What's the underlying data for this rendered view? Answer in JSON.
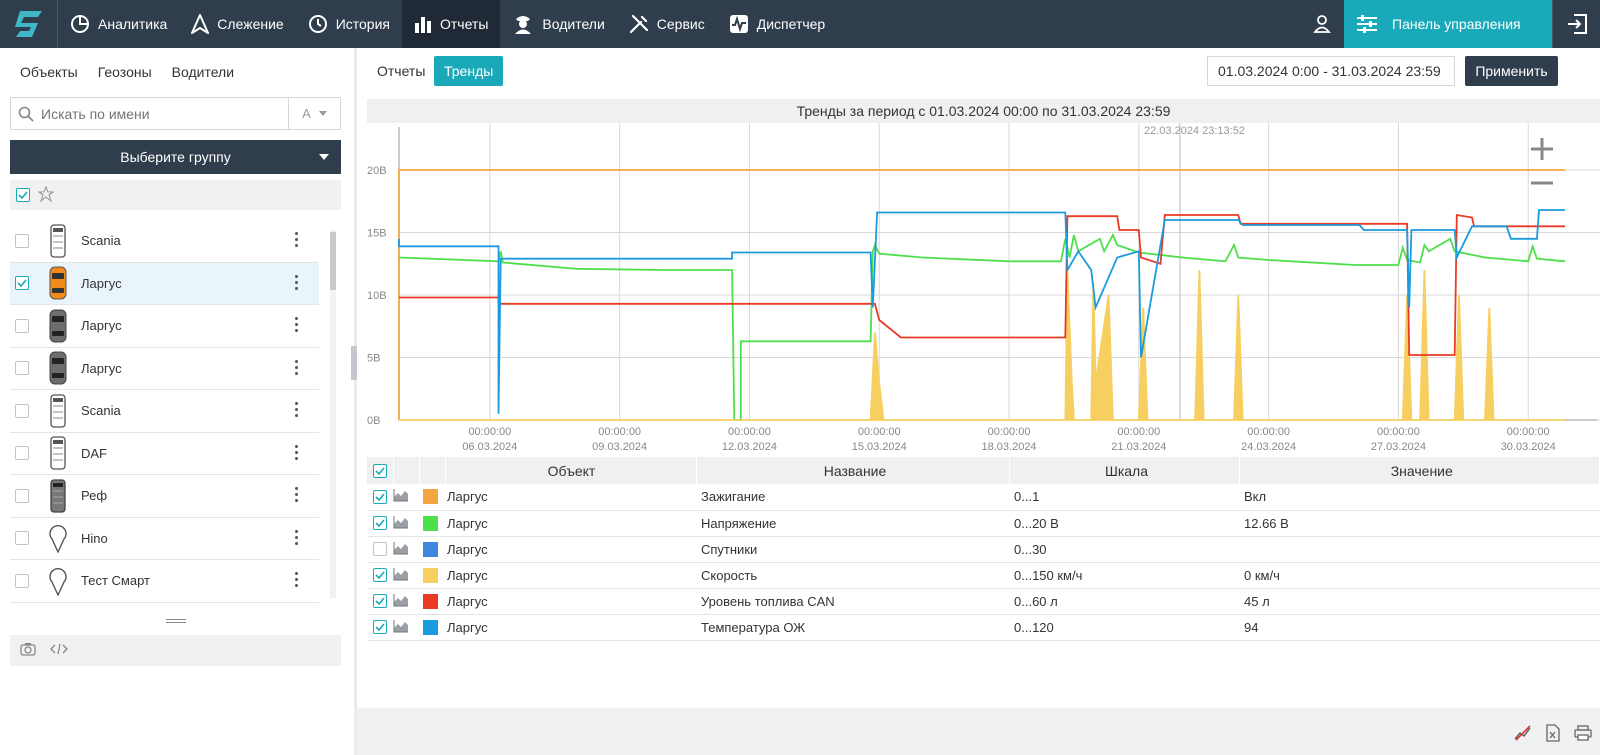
{
  "nav": {
    "items": [
      {
        "label": "Аналитика",
        "icon": "analytics-icon"
      },
      {
        "label": "Слежение",
        "icon": "tracking-icon"
      },
      {
        "label": "История",
        "icon": "history-icon"
      },
      {
        "label": "Отчеты",
        "icon": "reports-icon",
        "active": true
      },
      {
        "label": "Водители",
        "icon": "drivers-icon"
      },
      {
        "label": "Сервис",
        "icon": "service-icon"
      },
      {
        "label": "Диспетчер",
        "icon": "dispatcher-icon"
      }
    ],
    "control_panel_label": "Панель управления",
    "accent": "#1aa9b8"
  },
  "left": {
    "tabs": [
      "Объекты",
      "Геозоны",
      "Водители"
    ],
    "search_placeholder": "Искать по имени",
    "sort_label": "А",
    "group_select": "Выберите группу",
    "vehicles": [
      {
        "name": "Scania",
        "icon": "truck-icon",
        "checked": false
      },
      {
        "name": "Ларгус",
        "icon": "car-icon",
        "checked": true
      },
      {
        "name": "Ларгус",
        "icon": "car-icon",
        "checked": false
      },
      {
        "name": "Ларгус",
        "icon": "car-icon",
        "checked": false
      },
      {
        "name": "Scania",
        "icon": "truck-icon",
        "checked": false
      },
      {
        "name": "DAF",
        "icon": "truck-icon",
        "checked": false
      },
      {
        "name": "Реф",
        "icon": "truck-icon",
        "checked": false
      },
      {
        "name": "Hino",
        "icon": "map-pin-icon",
        "checked": false
      },
      {
        "name": "Тест Смарт",
        "icon": "map-pin-icon",
        "checked": false
      }
    ]
  },
  "right": {
    "tab_reports": "Отчеты",
    "tab_trends": "Тренды",
    "date_range": "01.03.2024 0:00 - 31.03.2024 23:59",
    "apply_label": "Применить",
    "chart_title": "Тренды за период с 01.03.2024 00:00 по 31.03.2024 23:59",
    "table": {
      "headers": [
        "Объект",
        "Название",
        "Шкала",
        "Значение"
      ],
      "rows": [
        {
          "object": "Ларгус",
          "name": "Зажигание",
          "scale": "0...1",
          "value": "Вкл",
          "color": "#f5a540",
          "checked": true
        },
        {
          "object": "Ларгус",
          "name": "Напряжение",
          "scale": "0...20 В",
          "value": "12.66 В",
          "color": "#4ee04a",
          "checked": true
        },
        {
          "object": "Ларгус",
          "name": "Спутники",
          "scale": "0...30",
          "value": "",
          "color": "#3f87dc",
          "checked": false
        },
        {
          "object": "Ларгус",
          "name": "Скорость",
          "scale": "0...150 км/ч",
          "value": "0 км/ч",
          "color": "#f7cf60",
          "checked": true
        },
        {
          "object": "Ларгус",
          "name": "Уровень топлива CAN",
          "scale": "0...60 л",
          "value": "45 л",
          "color": "#ea3a24",
          "checked": true
        },
        {
          "object": "Ларгус",
          "name": "Температура ОЖ",
          "scale": "0...120",
          "value": "94",
          "color": "#1b9bdf",
          "checked": true
        }
      ]
    }
  },
  "chart_data": {
    "type": "line",
    "title": "Тренды за период с 01.03.2024 00:00 по 31.03.2024 23:59",
    "cursor_label": "22.03.2024 23:13:52",
    "y_axis": {
      "ticks": [
        "0В",
        "5В",
        "10В",
        "15В",
        "20В"
      ],
      "range": [
        0,
        22
      ]
    },
    "x_axis": {
      "range_days": [
        3.9,
        30.85
      ],
      "ticks": [
        {
          "day": 6,
          "time": "00:00:00",
          "date": "06.03.2024"
        },
        {
          "day": 9,
          "time": "00:00:00",
          "date": "09.03.2024"
        },
        {
          "day": 12,
          "time": "00:00:00",
          "date": "12.03.2024"
        },
        {
          "day": 15,
          "time": "00:00:00",
          "date": "15.03.2024"
        },
        {
          "day": 18,
          "time": "00:00:00",
          "date": "18.03.2024"
        },
        {
          "day": 21,
          "time": "00:00:00",
          "date": "21.03.2024"
        },
        {
          "day": 24,
          "time": "00:00:00",
          "date": "24.03.2024"
        },
        {
          "day": 27,
          "time": "00:00:00",
          "date": "27.03.2024"
        },
        {
          "day": 30,
          "time": "00:00:00",
          "date": "30.03.2024"
        }
      ]
    },
    "series": [
      {
        "name": "Зажигание",
        "color": "#f5a540",
        "points": [
          [
            3.9,
            0
          ],
          [
            3.9,
            20
          ],
          [
            30.85,
            20
          ]
        ]
      },
      {
        "name": "Напряжение",
        "color": "#4ee04a",
        "points": [
          [
            3.9,
            13
          ],
          [
            6.2,
            12.7
          ],
          [
            6.25,
            13.5
          ],
          [
            6.3,
            12.6
          ],
          [
            8,
            12.1
          ],
          [
            10,
            12.0
          ],
          [
            11.6,
            12.0
          ],
          [
            11.65,
            0
          ],
          [
            11.8,
            0
          ],
          [
            11.8,
            6.3
          ],
          [
            14.8,
            6.3
          ],
          [
            14.85,
            13.5
          ],
          [
            14.9,
            14
          ],
          [
            15,
            13.3
          ],
          [
            16,
            13.0
          ],
          [
            18,
            12.7
          ],
          [
            19.2,
            12.7
          ],
          [
            19.3,
            14.5
          ],
          [
            19.4,
            13
          ],
          [
            19.5,
            14.8
          ],
          [
            19.6,
            13.5
          ],
          [
            20.1,
            14.5
          ],
          [
            20.2,
            13.5
          ],
          [
            20.4,
            14.8
          ],
          [
            20.5,
            14
          ],
          [
            21,
            13.4
          ],
          [
            22,
            13.0
          ],
          [
            23,
            12.7
          ],
          [
            23.2,
            14
          ],
          [
            23.3,
            13
          ],
          [
            24,
            12.8
          ],
          [
            26,
            12.4
          ],
          [
            27,
            12.4
          ],
          [
            27.1,
            13.8
          ],
          [
            27.2,
            12.8
          ],
          [
            27.5,
            12.6
          ],
          [
            27.6,
            14
          ],
          [
            27.7,
            13.5
          ],
          [
            28.2,
            14.5
          ],
          [
            28.3,
            13.5
          ],
          [
            29,
            13.0
          ],
          [
            30,
            12.7
          ],
          [
            30.1,
            13.9
          ],
          [
            30.2,
            12.9
          ],
          [
            30.85,
            12.7
          ]
        ]
      },
      {
        "name": "Скорость",
        "color": "#f7cf60",
        "points": [
          [
            3.9,
            0
          ],
          [
            14.8,
            0
          ],
          [
            14.9,
            7
          ],
          [
            15,
            3
          ],
          [
            15.1,
            0
          ],
          [
            19.3,
            0
          ],
          [
            19.35,
            12
          ],
          [
            19.45,
            3
          ],
          [
            19.5,
            0
          ],
          [
            19.9,
            0
          ],
          [
            19.95,
            11
          ],
          [
            20,
            3
          ],
          [
            20.3,
            10
          ],
          [
            20.4,
            0
          ],
          [
            21,
            0
          ],
          [
            21.1,
            9
          ],
          [
            21.2,
            0
          ],
          [
            22.3,
            0
          ],
          [
            22.4,
            12
          ],
          [
            22.5,
            0
          ],
          [
            23.2,
            0
          ],
          [
            23.3,
            10
          ],
          [
            23.4,
            0
          ],
          [
            27.1,
            0
          ],
          [
            27.2,
            10
          ],
          [
            27.3,
            0
          ],
          [
            27.5,
            0
          ],
          [
            27.6,
            12
          ],
          [
            27.7,
            0
          ],
          [
            28.3,
            0
          ],
          [
            28.4,
            10
          ],
          [
            28.5,
            0
          ],
          [
            29,
            0
          ],
          [
            29.1,
            9
          ],
          [
            29.2,
            0
          ],
          [
            30.85,
            0
          ]
        ]
      },
      {
        "name": "Уровень топлива CAN",
        "color": "#ea3a24",
        "points": [
          [
            3.9,
            9.8
          ],
          [
            6.2,
            9.8
          ],
          [
            6.2,
            9.3
          ],
          [
            14.9,
            9.3
          ],
          [
            15,
            8.0
          ],
          [
            15.5,
            6.6
          ],
          [
            19.3,
            6.6
          ],
          [
            19.35,
            16.3
          ],
          [
            20.5,
            16.3
          ],
          [
            20.55,
            15.2
          ],
          [
            21,
            15.2
          ],
          [
            21.05,
            13.0
          ],
          [
            21.5,
            12.5
          ],
          [
            21.6,
            16.4
          ],
          [
            23.3,
            16.4
          ],
          [
            23.35,
            15.7
          ],
          [
            27.2,
            15.7
          ],
          [
            27.25,
            5.2
          ],
          [
            28.3,
            5.2
          ],
          [
            28.35,
            16.4
          ],
          [
            28.7,
            16.2
          ],
          [
            28.75,
            15.5
          ],
          [
            30.85,
            15.5
          ]
        ]
      },
      {
        "name": "Температура ОЖ",
        "color": "#1b9bdf",
        "points": [
          [
            3.9,
            14.5
          ],
          [
            3.9,
            13.9
          ],
          [
            6.2,
            13.9
          ],
          [
            6.2,
            0.5
          ],
          [
            6.25,
            12.9
          ],
          [
            11.6,
            12.9
          ],
          [
            11.6,
            13.4
          ],
          [
            14.8,
            13.4
          ],
          [
            14.85,
            9
          ],
          [
            14.95,
            16.6
          ],
          [
            19.3,
            16.6
          ],
          [
            19.35,
            12
          ],
          [
            19.6,
            13.5
          ],
          [
            19.9,
            12
          ],
          [
            20,
            9
          ],
          [
            20.5,
            13
          ],
          [
            21,
            13.5
          ],
          [
            21.05,
            5
          ],
          [
            21.6,
            16
          ],
          [
            23.3,
            16
          ],
          [
            23.4,
            15.6
          ],
          [
            26.1,
            15.6
          ],
          [
            26.2,
            15.2
          ],
          [
            27.2,
            15.2
          ],
          [
            27.25,
            9
          ],
          [
            27.3,
            15.2
          ],
          [
            28.3,
            15.2
          ],
          [
            28.35,
            13
          ],
          [
            28.7,
            15.5
          ],
          [
            29.5,
            15.5
          ],
          [
            29.6,
            14.5
          ],
          [
            30.2,
            14.5
          ],
          [
            30.25,
            16.8
          ],
          [
            30.85,
            16.8
          ]
        ]
      }
    ]
  }
}
